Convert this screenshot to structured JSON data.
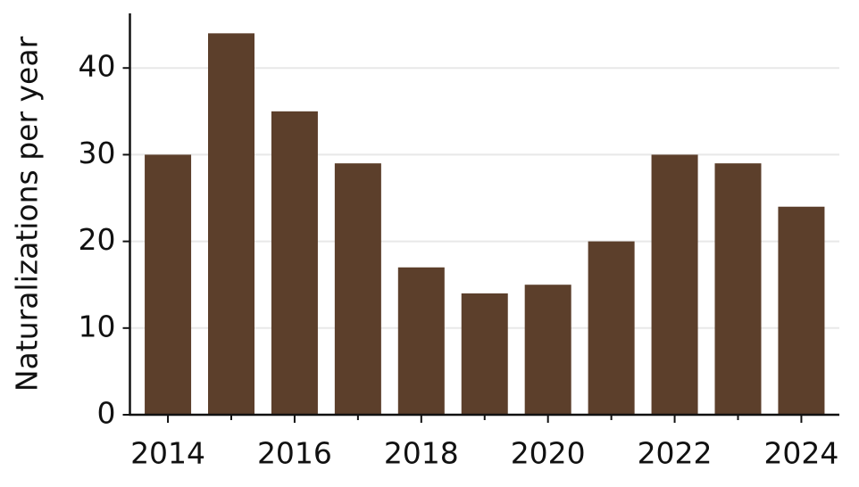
{
  "chart_data": {
    "type": "bar",
    "y_label": "Naturalizations per year",
    "categories": [
      "2014",
      null,
      "2016",
      null,
      "2018",
      null,
      "2020",
      null,
      "2022",
      null,
      "2024"
    ],
    "values": [
      30,
      44,
      35,
      29,
      17,
      14,
      15,
      20,
      30,
      29,
      24
    ],
    "color": "#5c3f2b",
    "ylim": [
      0,
      46.3
    ],
    "yticks": [
      0,
      10,
      20,
      30,
      40
    ],
    "grid": true
  }
}
